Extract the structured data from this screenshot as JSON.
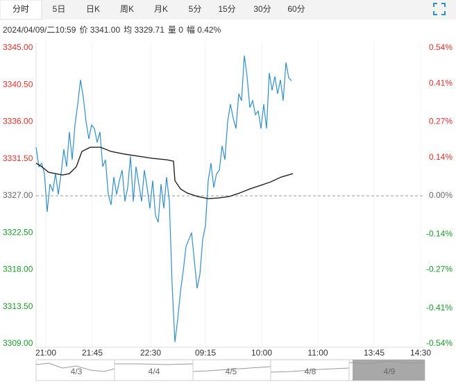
{
  "tabs": [
    "分时",
    "5日",
    "日K",
    "周K",
    "月K",
    "5分",
    "15分",
    "30分",
    "60分"
  ],
  "info": [
    "2024/04/09/二10:59",
    "价 3341.00",
    "均 3329.71",
    "量 0",
    "幅 0.42%"
  ],
  "navigator": {
    "labels": [
      "4/3",
      "4/4",
      "4/5",
      "4/8",
      "4/9"
    ]
  },
  "chart_data": {
    "type": "line",
    "ylim": [
      3309,
      3345
    ],
    "yticks": [
      {
        "value": 3345,
        "label": "3345.00"
      },
      {
        "value": 3340.5,
        "label": "3340.50"
      },
      {
        "value": 3336,
        "label": "3336.00"
      },
      {
        "value": 3331.5,
        "label": "3331.50"
      },
      {
        "value": 3327,
        "label": "3327.00"
      },
      {
        "value": 3322.5,
        "label": "3322.50"
      },
      {
        "value": 3318,
        "label": "3318.00"
      },
      {
        "value": 3313.5,
        "label": "3313.50"
      },
      {
        "value": 3309,
        "label": "3309.00"
      }
    ],
    "y2lim": [
      -0.54,
      0.54
    ],
    "y2ticks": [
      {
        "value": 0.54,
        "label": "0.54%"
      },
      {
        "value": 0.41,
        "label": "0.41%"
      },
      {
        "value": 0.27,
        "label": "0.27%"
      },
      {
        "value": 0.14,
        "label": "0.14%"
      },
      {
        "value": 0,
        "label": "0.00%"
      },
      {
        "value": -0.14,
        "label": "-0.14%"
      },
      {
        "value": -0.27,
        "label": "-0.27%"
      },
      {
        "value": -0.41,
        "label": "-0.41%"
      },
      {
        "value": -0.54,
        "label": "-0.54%"
      }
    ],
    "xlim": [
      0,
      280
    ],
    "xticks": [
      {
        "value": 7,
        "label": "21:00"
      },
      {
        "value": 40.5,
        "label": "21:45"
      },
      {
        "value": 82.5,
        "label": "22:30"
      },
      {
        "value": 122,
        "label": "09:15"
      },
      {
        "value": 162.5,
        "label": "10:00"
      },
      {
        "value": 203,
        "label": "11:00"
      },
      {
        "value": 243.5,
        "label": "13:45"
      },
      {
        "value": 277,
        "label": "14:30"
      }
    ],
    "prev_close": 3327,
    "up_color": "#e0322b",
    "down_color": "#1a9a27",
    "flat_color": "#666666",
    "grid": true,
    "series": [
      {
        "name": "价",
        "color": "#2f8fc8",
        "x": [
          0,
          2,
          4,
          6,
          8,
          10,
          12,
          14,
          16,
          18,
          20,
          22,
          24,
          26,
          28,
          30,
          32,
          34,
          36,
          38,
          40,
          42,
          44,
          46,
          48,
          50,
          52,
          54,
          56,
          58,
          60,
          62,
          64,
          66,
          68,
          70,
          72,
          74,
          76,
          78,
          80,
          82,
          84,
          86,
          88,
          90,
          92,
          94,
          96,
          98,
          100,
          102,
          104,
          106,
          108,
          110,
          112,
          114,
          116,
          118,
          120,
          122,
          124,
          126,
          128,
          130,
          132,
          134,
          136,
          138,
          140,
          142,
          144,
          146,
          148,
          150,
          152,
          154,
          156,
          158,
          160,
          162,
          164,
          166,
          168,
          170,
          172,
          174,
          176,
          178,
          180,
          182,
          184
        ],
        "values": [
          3332.91,
          3330.55,
          3330.97,
          3329.7,
          3325.05,
          3328.43,
          3327.59,
          3329.7,
          3327.16,
          3329.7,
          3332.66,
          3330.55,
          3334.77,
          3331.39,
          3335.62,
          3338.15,
          3341.11,
          3339.0,
          3336.04,
          3333.93,
          3335.62,
          3335.19,
          3333.5,
          3334.77,
          3330.55,
          3331.39,
          3327.16,
          3325.9,
          3329.28,
          3327.16,
          3328.85,
          3330.12,
          3326.32,
          3328.01,
          3331.81,
          3326.32,
          3330.55,
          3328.43,
          3326.32,
          3330.12,
          3328.01,
          3325.47,
          3328.85,
          3324.63,
          3323.78,
          3328.43,
          3325.47,
          3329.28,
          3326.32,
          3316.17,
          3309.2,
          3311.95,
          3315.33,
          3317.87,
          3320.82,
          3321.67,
          3322.51,
          3319.13,
          3315.75,
          3317.44,
          3321.67,
          3323.36,
          3328.85,
          3330.97,
          3328.01,
          3329.7,
          3330.12,
          3333.08,
          3331.39,
          3336.04,
          3338.15,
          3336.46,
          3335.19,
          3339.42,
          3338.58,
          3344.07,
          3341.53,
          3337.73,
          3338.58,
          3336.88,
          3337.31,
          3335.19,
          3338.15,
          3335.19,
          3341.96,
          3339.84,
          3341.53,
          3339.42,
          3341.11,
          3338.58,
          3343.22,
          3341.37,
          3341.0
        ]
      },
      {
        "name": "均",
        "color": "#222222",
        "x": [
          0,
          4,
          9,
          14,
          19,
          24,
          29,
          33,
          39,
          46.5,
          54,
          64,
          74,
          84,
          94,
          99,
          100,
          104,
          109,
          116.5,
          124,
          131.5,
          139,
          146.5,
          154,
          161.5,
          169,
          176.5,
          185
        ],
        "values": [
          3330.97,
          3330.55,
          3329.87,
          3329.7,
          3329.53,
          3329.7,
          3330.55,
          3332.4,
          3332.91,
          3332.91,
          3332.4,
          3332.07,
          3331.81,
          3331.56,
          3331.39,
          3331.22,
          3328.85,
          3327.84,
          3327.33,
          3326.91,
          3326.66,
          3326.74,
          3326.91,
          3327.33,
          3327.84,
          3328.26,
          3328.69,
          3329.28,
          3329.7
        ]
      }
    ]
  }
}
